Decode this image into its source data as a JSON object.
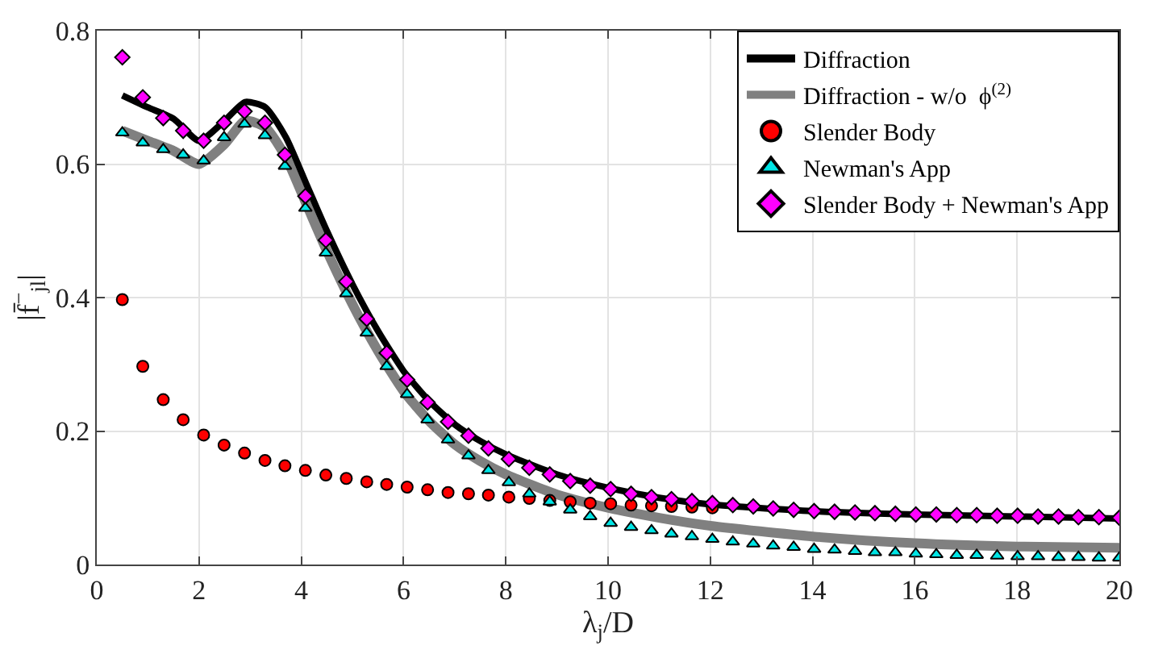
{
  "chart_data": {
    "type": "scatter",
    "xlabel": "λ$_{j}$/D",
    "ylabel": "|f̄$^{−}$$_{jl}$|",
    "xlim": [
      0,
      20
    ],
    "xticks": [
      0,
      2,
      4,
      6,
      8,
      10,
      12,
      14,
      16,
      18,
      20
    ],
    "ylim": [
      0,
      0.8
    ],
    "yticks": [
      0,
      0.2,
      0.4,
      0.6,
      0.8
    ],
    "grid": true,
    "legend": "top right",
    "x": [
      0.5,
      0.9,
      1.3,
      1.69,
      2.09,
      2.49,
      2.89,
      3.29,
      3.68,
      4.08,
      4.48,
      4.88,
      5.28,
      5.67,
      6.07,
      6.47,
      6.87,
      7.27,
      7.66,
      8.06,
      8.46,
      8.86,
      9.26,
      9.65,
      10.05,
      10.45,
      10.85,
      11.24,
      11.64,
      12.04,
      12.44,
      12.84,
      13.23,
      13.63,
      14.03,
      14.43,
      14.83,
      15.22,
      15.62,
      16.02,
      16.42,
      16.82,
      17.21,
      17.61,
      18.01,
      18.41,
      18.81,
      19.2,
      19.6,
      20.0
    ],
    "series": [
      {
        "name": "Diffraction",
        "type": "line",
        "color": "#000000",
        "line_style": "solid",
        "marker": "none",
        "x": [
          0.5,
          1,
          1.5,
          2,
          2.5,
          2.9,
          3.3,
          3.7,
          4.1,
          4.5,
          5,
          5.5,
          6,
          6.5,
          7,
          7.5,
          8,
          9,
          10,
          11,
          12,
          14,
          16,
          18,
          20
        ],
        "values": [
          0.703,
          0.685,
          0.668,
          0.635,
          0.665,
          0.693,
          0.685,
          0.64,
          0.57,
          0.5,
          0.42,
          0.35,
          0.29,
          0.245,
          0.21,
          0.185,
          0.165,
          0.135,
          0.115,
          0.1,
          0.09,
          0.08,
          0.075,
          0.072,
          0.069
        ]
      },
      {
        "name": "Diffraction - w/o  ϕ$^{(2)}$",
        "type": "line",
        "color": "#808080",
        "line_style": "solid",
        "marker": "none",
        "x": [
          0.5,
          1,
          1.5,
          2,
          2.5,
          2.9,
          3.3,
          3.7,
          4.1,
          4.5,
          5,
          5.5,
          6,
          6.5,
          7,
          7.5,
          8,
          9,
          10,
          11,
          12,
          14,
          16,
          18,
          20
        ],
        "values": [
          0.65,
          0.635,
          0.62,
          0.6,
          0.63,
          0.665,
          0.655,
          0.61,
          0.54,
          0.47,
          0.39,
          0.32,
          0.26,
          0.215,
          0.18,
          0.155,
          0.135,
          0.105,
          0.085,
          0.07,
          0.058,
          0.042,
          0.032,
          0.027,
          0.025
        ]
      },
      {
        "name": "Slender Body",
        "color": "#ff0000",
        "marker": "circle",
        "values": [
          0.397,
          0.297,
          0.247,
          0.217,
          0.194,
          0.179,
          0.167,
          0.156,
          0.148,
          0.141,
          0.134,
          0.129,
          0.124,
          0.12,
          0.116,
          0.112,
          0.108,
          0.106,
          0.104,
          0.101,
          0.099,
          0.096,
          0.094,
          0.092,
          0.091,
          0.089,
          0.088,
          0.087,
          0.086,
          0.085,
          null,
          null,
          null,
          null,
          null,
          null,
          null,
          null,
          null,
          null,
          null,
          null,
          null,
          null,
          null,
          null,
          null,
          null,
          null,
          null
        ]
      },
      {
        "name": "Newman's App",
        "color": "#00e5e5",
        "marker": "triangle",
        "values": [
          0.647,
          0.632,
          0.622,
          0.614,
          0.605,
          0.64,
          0.66,
          0.643,
          0.597,
          0.534,
          0.467,
          0.406,
          0.347,
          0.297,
          0.255,
          0.217,
          0.187,
          0.163,
          0.141,
          0.123,
          0.106,
          0.094,
          0.082,
          0.072,
          0.062,
          0.056,
          0.051,
          0.046,
          0.042,
          0.038,
          0.034,
          0.031,
          0.028,
          0.026,
          0.023,
          0.022,
          0.02,
          0.018,
          0.018,
          0.016,
          0.015,
          0.014,
          0.014,
          0.013,
          0.012,
          0.012,
          0.011,
          0.011,
          0.01,
          0.01
        ]
      },
      {
        "name": "Slender Body + Newman's App",
        "color": "#ff00ff",
        "marker": "diamond",
        "values": [
          0.76,
          0.7,
          0.669,
          0.65,
          0.635,
          0.662,
          0.679,
          0.662,
          0.614,
          0.552,
          0.486,
          0.424,
          0.368,
          0.317,
          0.277,
          0.243,
          0.214,
          0.193,
          0.174,
          0.158,
          0.145,
          0.135,
          0.125,
          0.118,
          0.113,
          0.106,
          0.101,
          0.098,
          0.095,
          0.092,
          0.089,
          0.087,
          0.084,
          0.082,
          0.08,
          0.079,
          0.078,
          0.077,
          0.076,
          0.075,
          0.075,
          0.074,
          0.074,
          0.073,
          0.073,
          0.072,
          0.072,
          0.071,
          0.071,
          0.07
        ]
      }
    ]
  }
}
